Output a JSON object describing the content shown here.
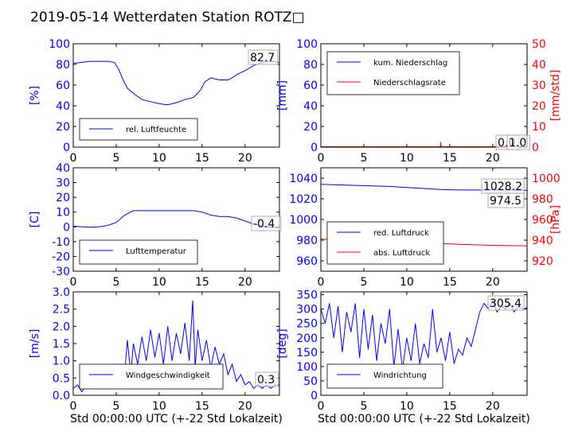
{
  "title": "2019-05-14 Wetterdaten Station ROTZ□",
  "xlabel": "Std 00:00:00 UTC (+-22 Std Lokalzeit)",
  "colors": {
    "blue": "#0000ff",
    "red": "#ff0000",
    "black": "#000000"
  },
  "chart_data": [
    {
      "type": "line",
      "ylabel": "[%]",
      "xlim": [
        0,
        24
      ],
      "ylim": [
        0,
        100
      ],
      "xticks": [
        0,
        5,
        10,
        15,
        20
      ],
      "yticks": [
        0,
        20,
        40,
        60,
        80,
        100
      ],
      "legend": "bottom-left",
      "annotation": "82.7",
      "series": [
        {
          "name": "rel. Luftfeuchte",
          "color": "#0000ff",
          "x": [
            0,
            1,
            2,
            3,
            4,
            4.8,
            5.3,
            5.8,
            6.3,
            7,
            8,
            9,
            10,
            11,
            12,
            13,
            14,
            14.8,
            15.3,
            16,
            17,
            18,
            18.5,
            19,
            20,
            21,
            22,
            23,
            24
          ],
          "y": [
            81,
            82,
            83,
            83,
            83,
            82,
            75,
            65,
            57,
            52,
            46,
            44,
            42,
            41,
            43,
            46,
            48,
            55,
            63,
            67,
            65,
            65,
            67,
            70,
            74,
            79,
            82,
            83,
            82
          ]
        }
      ]
    },
    {
      "type": "line",
      "ylabel": "[mm]",
      "ylabel2": "[mm/std]",
      "xlim": [
        0,
        24
      ],
      "ylim": [
        0,
        100
      ],
      "ylim2": [
        0,
        50
      ],
      "xticks": [
        0,
        5,
        10,
        15,
        20
      ],
      "yticks": [
        0,
        20,
        40,
        60,
        80,
        100
      ],
      "yticks2": [
        0,
        10,
        20,
        30,
        40,
        50
      ],
      "legend": "top-left",
      "annotations": [
        "0.0",
        "1.0"
      ],
      "series": [
        {
          "name": "kum. Niederschlag",
          "color": "#0000ff",
          "x": [
            0,
            24
          ],
          "y": [
            0,
            0
          ]
        },
        {
          "name": "Niederschlagsrate",
          "color": "#ff0000",
          "axis": "right",
          "x": [
            0,
            13.9,
            13.95,
            14.0,
            14.05,
            24
          ],
          "y": [
            0.2,
            0.2,
            2.5,
            0.2,
            0.2,
            0.2
          ]
        }
      ]
    },
    {
      "type": "line",
      "ylabel": "[C]",
      "xlim": [
        0,
        24
      ],
      "ylim": [
        -30,
        40
      ],
      "xticks": [
        0,
        5,
        10,
        15,
        20
      ],
      "yticks": [
        -30,
        -20,
        -10,
        0,
        10,
        20,
        30,
        40
      ],
      "legend": "bottom-left",
      "annotation": "-0.4",
      "series": [
        {
          "name": "Lufttemperatur",
          "color": "#0000ff",
          "x": [
            0,
            1,
            2,
            3,
            4,
            5,
            6,
            7,
            8,
            9,
            10,
            11,
            12,
            13,
            14,
            15,
            16,
            17,
            18,
            19,
            20,
            21,
            22,
            23,
            24
          ],
          "y": [
            0.5,
            0,
            -0.2,
            0,
            1,
            3,
            8,
            11,
            11,
            11,
            11,
            11,
            11,
            11,
            11,
            10,
            8,
            7,
            7,
            6,
            4,
            2,
            0.5,
            -0.4,
            -0.4
          ]
        }
      ]
    },
    {
      "type": "line",
      "ylabel": "",
      "ylabel2": "[hPa]",
      "xlim": [
        0,
        24
      ],
      "ylim": [
        950,
        1050
      ],
      "ylim2": [
        910,
        1010
      ],
      "xticks": [
        0,
        5,
        10,
        15,
        20
      ],
      "yticks": [
        960,
        980,
        1000,
        1020,
        1040
      ],
      "yticks2": [
        920,
        940,
        960,
        980,
        1000
      ],
      "legend": "bottom-left",
      "annotations": [
        "1028.2",
        "974.5"
      ],
      "series": [
        {
          "name": "red. Luftdruck",
          "color": "#0000ff",
          "x": [
            0,
            4,
            8,
            12,
            14,
            16,
            20,
            24
          ],
          "y": [
            1034,
            1033,
            1032,
            1030,
            1029,
            1028.5,
            1028.5,
            1028.2
          ]
        },
        {
          "name": "abs. Luftdruck",
          "color": "#ff0000",
          "x": [
            0,
            4,
            8,
            12,
            16,
            20,
            24
          ],
          "y": [
            981,
            980,
            979.5,
            978,
            976,
            975,
            974.5
          ]
        }
      ]
    },
    {
      "type": "line",
      "ylabel": "[m/s]",
      "xlim": [
        0,
        24
      ],
      "ylim": [
        0,
        3
      ],
      "xticks": [
        0,
        5,
        10,
        15,
        20
      ],
      "yticks": [
        0.0,
        0.5,
        1.0,
        1.5,
        2.0,
        2.5,
        3.0
      ],
      "legend": "bottom-left",
      "annotation": "0.3",
      "series": [
        {
          "name": "Windgeschwindigkeit",
          "color": "#0000ff",
          "x": [
            0,
            0.5,
            1,
            1.5,
            2,
            2.5,
            3,
            3.5,
            4,
            4.5,
            5,
            5.5,
            6,
            6.3,
            6.7,
            7,
            7.5,
            8,
            8.5,
            9,
            9.5,
            10,
            10.5,
            11,
            11.5,
            12,
            12.5,
            13,
            13.5,
            13.9,
            14.2,
            14.5,
            15,
            15.5,
            16,
            16.5,
            17,
            17.5,
            18,
            18.5,
            19,
            19.5,
            20,
            20.5,
            21,
            21.5,
            22,
            22.5,
            23,
            23.5,
            24
          ],
          "y": [
            0.2,
            0.3,
            0.1,
            0.3,
            0.2,
            0.4,
            0.3,
            0.5,
            0.4,
            0.7,
            0.6,
            0.9,
            0.7,
            1.6,
            0.6,
            1.5,
            0.9,
            1.7,
            1.0,
            1.9,
            1.1,
            1.8,
            0.9,
            2.0,
            1.0,
            1.8,
            1.2,
            2.1,
            1.0,
            2.75,
            0.8,
            1.9,
            1.0,
            1.6,
            0.8,
            1.4,
            0.9,
            1.2,
            0.6,
            0.9,
            0.4,
            0.6,
            0.3,
            0.4,
            0.2,
            0.3,
            0.2,
            0.3,
            0.2,
            0.3,
            0.3
          ]
        }
      ]
    },
    {
      "type": "line",
      "ylabel": "[deg]",
      "xlim": [
        0,
        24
      ],
      "ylim": [
        0,
        360
      ],
      "xticks": [
        0,
        5,
        10,
        15,
        20
      ],
      "yticks": [
        0,
        50,
        100,
        150,
        200,
        250,
        300,
        350
      ],
      "legend": "bottom-left",
      "annotation": "305.4",
      "series": [
        {
          "name": "Windrichtung",
          "color": "#0000ff",
          "x": [
            0,
            0.5,
            1,
            1.5,
            2,
            2.5,
            3,
            3.5,
            4,
            4.5,
            5,
            5.5,
            6,
            6.5,
            7,
            7.5,
            8,
            8.5,
            9,
            9.5,
            10,
            10.5,
            11,
            11.5,
            12,
            12.5,
            13,
            13.5,
            14,
            14.5,
            15,
            15.5,
            16,
            16.5,
            17,
            17.5,
            18,
            18.5,
            19,
            19.5,
            20,
            20.5,
            21,
            21.5,
            22,
            22.5,
            23,
            23.5,
            24
          ],
          "y": [
            300,
            250,
            320,
            200,
            310,
            150,
            290,
            220,
            320,
            130,
            300,
            160,
            280,
            120,
            250,
            180,
            300,
            100,
            230,
            90,
            200,
            120,
            250,
            110,
            180,
            130,
            300,
            150,
            200,
            120,
            220,
            110,
            160,
            140,
            200,
            170,
            230,
            290,
            320,
            300,
            330,
            290,
            310,
            300,
            320,
            290,
            310,
            300,
            305
          ]
        }
      ]
    }
  ]
}
